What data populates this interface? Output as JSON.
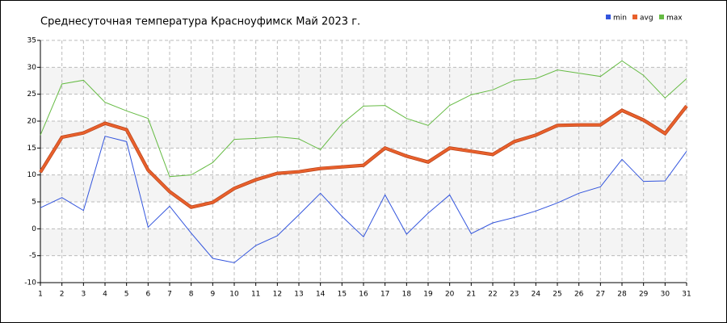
{
  "chart_data": {
    "type": "line",
    "title": "Среднесуточная температура Красноуфимск  Май 2023 г.",
    "x": [
      1,
      2,
      3,
      4,
      5,
      6,
      7,
      8,
      9,
      10,
      11,
      12,
      13,
      14,
      15,
      16,
      17,
      18,
      19,
      20,
      21,
      22,
      23,
      24,
      25,
      26,
      27,
      28,
      29,
      30,
      31
    ],
    "xlim": [
      1,
      31
    ],
    "xticks": [
      1,
      2,
      3,
      4,
      5,
      6,
      7,
      8,
      9,
      10,
      11,
      12,
      13,
      14,
      15,
      16,
      17,
      18,
      19,
      20,
      21,
      22,
      23,
      24,
      25,
      26,
      27,
      28,
      29,
      30,
      31
    ],
    "ylim": [
      -10,
      35
    ],
    "yticks": [
      -10,
      -5,
      0,
      5,
      10,
      15,
      20,
      25,
      30,
      35
    ],
    "grid": true,
    "legend": "top-right",
    "series": [
      {
        "name": "min",
        "color": "#3355dd",
        "values": [
          3.9,
          5.8,
          3.4,
          17.2,
          16.2,
          0.3,
          4.2,
          -0.8,
          -5.5,
          -6.3,
          -3.1,
          -1.3,
          2.6,
          6.6,
          2.3,
          -1.5,
          6.3,
          -1.0,
          2.9,
          6.3,
          -0.9,
          1.1,
          2.1,
          3.3,
          4.8,
          6.6,
          7.8,
          12.9,
          8.8,
          8.9,
          14.4
        ]
      },
      {
        "name": "avg",
        "color": "#e8602c",
        "values": [
          10.5,
          17.0,
          17.8,
          19.6,
          18.4,
          10.9,
          6.9,
          4.0,
          4.9,
          7.5,
          9.1,
          10.3,
          10.6,
          11.2,
          11.5,
          11.8,
          15.0,
          13.5,
          12.4,
          15.0,
          14.4,
          13.8,
          16.2,
          17.4,
          19.2,
          19.3,
          19.3,
          22.0,
          20.2,
          17.7,
          22.8
        ]
      },
      {
        "name": "max",
        "color": "#66bb44",
        "values": [
          17.4,
          26.9,
          27.6,
          23.5,
          21.9,
          20.5,
          9.7,
          10.0,
          12.3,
          16.6,
          16.8,
          17.1,
          16.7,
          14.7,
          19.5,
          22.8,
          22.9,
          20.5,
          19.2,
          22.9,
          24.9,
          25.8,
          27.6,
          27.9,
          29.5,
          28.9,
          28.3,
          31.2,
          28.5,
          24.3,
          27.9
        ]
      }
    ]
  }
}
